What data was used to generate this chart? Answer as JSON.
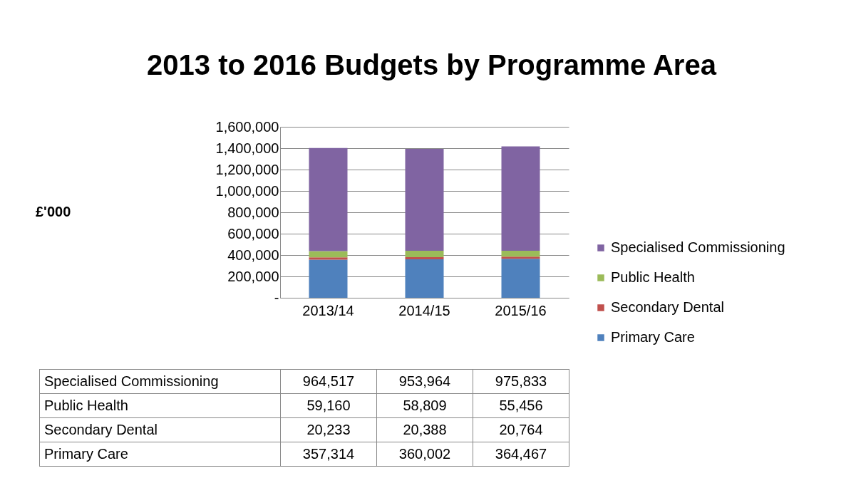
{
  "chart_data": {
    "type": "bar",
    "title": "2013 to 2016 Budgets by Programme Area",
    "annotations": [
      "£'000"
    ],
    "categories": [
      "2013/14",
      "2014/15",
      "2015/16"
    ],
    "stacked": true,
    "series": [
      {
        "name": "Primary Care",
        "color": "#4f81bd",
        "values": [
          357314,
          360002,
          364467
        ],
        "value_labels": [
          "357,314",
          "360,002",
          "364,467"
        ]
      },
      {
        "name": "Secondary Dental",
        "color": "#c0504d",
        "values": [
          20233,
          20388,
          20764
        ],
        "value_labels": [
          "20,233",
          "20,388",
          "20,764"
        ]
      },
      {
        "name": "Public Health",
        "color": "#9bbb59",
        "values": [
          59160,
          58809,
          55456
        ],
        "value_labels": [
          "59,160",
          "58,809",
          "55,456"
        ]
      },
      {
        "name": "Specialised Commissioning",
        "color": "#8064a2",
        "values": [
          964517,
          953964,
          975833
        ],
        "value_labels": [
          "964,517",
          "953,964",
          "975,833"
        ]
      }
    ],
    "ylim": [
      0,
      1600000
    ],
    "yticks": [
      {
        "value": 0,
        "label": "-"
      },
      {
        "value": 200000,
        "label": "200,000"
      },
      {
        "value": 400000,
        "label": "400,000"
      },
      {
        "value": 600000,
        "label": "600,000"
      },
      {
        "value": 800000,
        "label": "800,000"
      },
      {
        "value": 1000000,
        "label": "1,000,000"
      },
      {
        "value": 1200000,
        "label": "1,200,000"
      },
      {
        "value": 1400000,
        "label": "1,400,000"
      },
      {
        "value": 1600000,
        "label": "1,600,000"
      }
    ],
    "grid": "y",
    "legend": "right"
  }
}
